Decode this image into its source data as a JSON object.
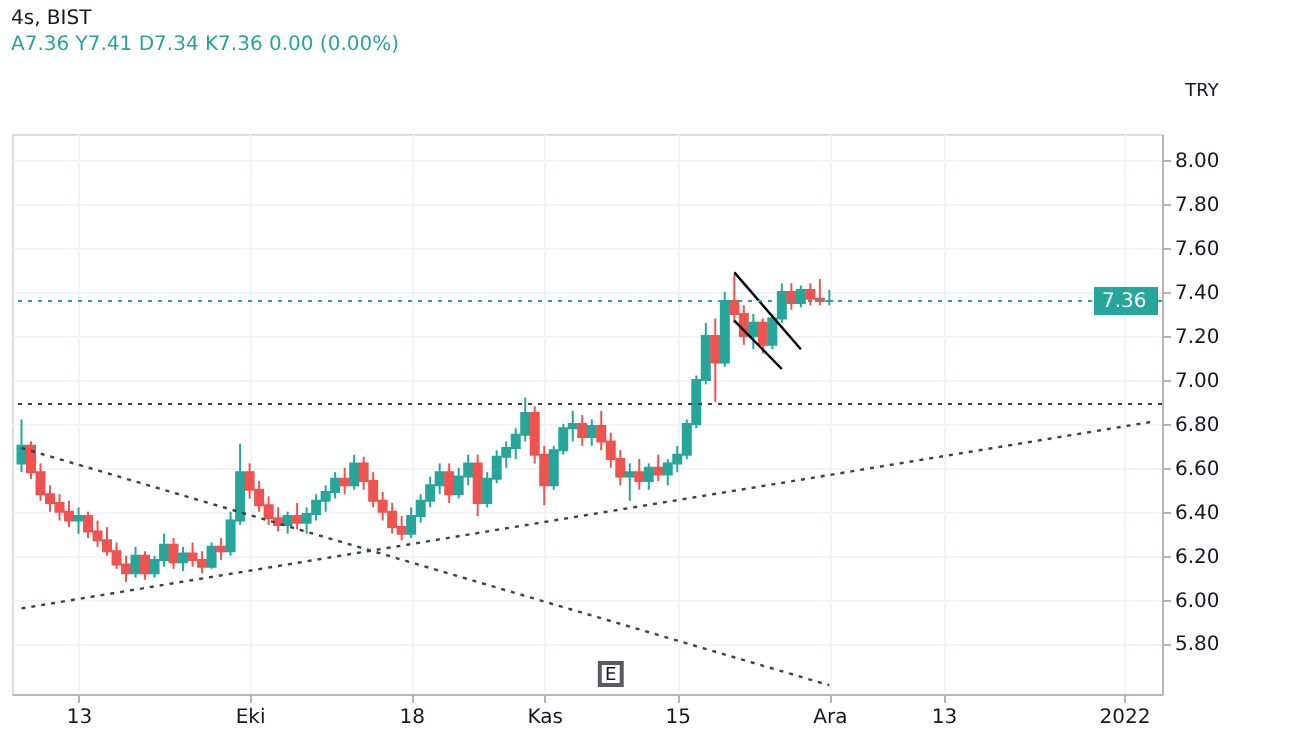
{
  "chart_data": {
    "type": "candlestick",
    "title": "4s, BIST",
    "subtitle": "A7.36  Y7.41  D7.34  K7.36  0.00 (0.00%)",
    "x": [
      "2021-09-07",
      "2021-09-08",
      "2021-09-09",
      "2021-09-10",
      "2021-09-11",
      "2021-09-12",
      "2021-09-13",
      "2021-09-14",
      "2021-09-15",
      "2021-09-16",
      "2021-09-17",
      "2021-09-18",
      "2021-09-19",
      "2021-09-20",
      "2021-09-21",
      "2021-09-22",
      "2021-09-23",
      "2021-09-24",
      "2021-09-25",
      "2021-09-26",
      "2021-09-27",
      "2021-09-28",
      "2021-09-29",
      "2021-09-30",
      "2021-10-01",
      "2021-10-02",
      "2021-10-03",
      "2021-10-04",
      "2021-10-05",
      "2021-10-06",
      "2021-10-07",
      "2021-10-08",
      "2021-10-09",
      "2021-10-10",
      "2021-10-11",
      "2021-10-12",
      "2021-10-13",
      "2021-10-14",
      "2021-10-15",
      "2021-10-16",
      "2021-10-17",
      "2021-10-18",
      "2021-10-19",
      "2021-10-20",
      "2021-10-21",
      "2021-10-22",
      "2021-10-23",
      "2021-10-24",
      "2021-10-25",
      "2021-10-26",
      "2021-10-27",
      "2021-10-28",
      "2021-10-29",
      "2021-10-30",
      "2021-10-31",
      "2021-11-01",
      "2021-11-02",
      "2021-11-03",
      "2021-11-04",
      "2021-11-05",
      "2021-11-06",
      "2021-11-07",
      "2021-11-08",
      "2021-11-09",
      "2021-11-10",
      "2021-11-11",
      "2021-11-12",
      "2021-11-13",
      "2021-11-14",
      "2021-11-15",
      "2021-11-16",
      "2021-11-17",
      "2021-11-18",
      "2021-11-19",
      "2021-11-20",
      "2021-11-21",
      "2021-11-22",
      "2021-11-23",
      "2021-11-24",
      "2021-11-25",
      "2021-11-26",
      "2021-11-27",
      "2021-11-28",
      "2021-11-29",
      "2021-11-30",
      "2021-12-01"
    ],
    "ohlc": [
      [
        6.62,
        6.82,
        6.58,
        6.7
      ],
      [
        6.7,
        6.72,
        6.55,
        6.58
      ],
      [
        6.58,
        6.62,
        6.45,
        6.48
      ],
      [
        6.48,
        6.52,
        6.4,
        6.44
      ],
      [
        6.44,
        6.48,
        6.36,
        6.4
      ],
      [
        6.4,
        6.45,
        6.33,
        6.36
      ],
      [
        6.36,
        6.42,
        6.3,
        6.38
      ],
      [
        6.38,
        6.4,
        6.28,
        6.31
      ],
      [
        6.31,
        6.36,
        6.24,
        6.27
      ],
      [
        6.27,
        6.33,
        6.2,
        6.22
      ],
      [
        6.22,
        6.26,
        6.14,
        6.16
      ],
      [
        6.16,
        6.2,
        6.08,
        6.12
      ],
      [
        6.12,
        6.24,
        6.1,
        6.2
      ],
      [
        6.2,
        6.22,
        6.09,
        6.12
      ],
      [
        6.12,
        6.2,
        6.1,
        6.18
      ],
      [
        6.18,
        6.3,
        6.15,
        6.25
      ],
      [
        6.25,
        6.28,
        6.14,
        6.17
      ],
      [
        6.17,
        6.24,
        6.13,
        6.21
      ],
      [
        6.21,
        6.26,
        6.15,
        6.18
      ],
      [
        6.18,
        6.22,
        6.12,
        6.15
      ],
      [
        6.15,
        6.26,
        6.14,
        6.24
      ],
      [
        6.24,
        6.28,
        6.18,
        6.22
      ],
      [
        6.22,
        6.4,
        6.2,
        6.36
      ],
      [
        6.36,
        6.71,
        6.34,
        6.58
      ],
      [
        6.58,
        6.62,
        6.46,
        6.5
      ],
      [
        6.5,
        6.54,
        6.4,
        6.43
      ],
      [
        6.43,
        6.47,
        6.34,
        6.37
      ],
      [
        6.37,
        6.42,
        6.31,
        6.34
      ],
      [
        6.34,
        6.4,
        6.3,
        6.38
      ],
      [
        6.38,
        6.44,
        6.32,
        6.35
      ],
      [
        6.35,
        6.42,
        6.3,
        6.39
      ],
      [
        6.39,
        6.48,
        6.36,
        6.45
      ],
      [
        6.45,
        6.52,
        6.4,
        6.49
      ],
      [
        6.49,
        6.58,
        6.46,
        6.55
      ],
      [
        6.55,
        6.6,
        6.48,
        6.52
      ],
      [
        6.52,
        6.66,
        6.5,
        6.62
      ],
      [
        6.62,
        6.65,
        6.5,
        6.54
      ],
      [
        6.54,
        6.58,
        6.42,
        6.45
      ],
      [
        6.45,
        6.49,
        6.36,
        6.4
      ],
      [
        6.4,
        6.44,
        6.3,
        6.33
      ],
      [
        6.33,
        6.38,
        6.27,
        6.3
      ],
      [
        6.3,
        6.42,
        6.28,
        6.38
      ],
      [
        6.38,
        6.48,
        6.35,
        6.45
      ],
      [
        6.45,
        6.56,
        6.42,
        6.52
      ],
      [
        6.52,
        6.62,
        6.48,
        6.58
      ],
      [
        6.58,
        6.62,
        6.44,
        6.48
      ],
      [
        6.48,
        6.6,
        6.46,
        6.56
      ],
      [
        6.56,
        6.66,
        6.52,
        6.62
      ],
      [
        6.62,
        6.66,
        6.38,
        6.44
      ],
      [
        6.44,
        6.58,
        6.42,
        6.55
      ],
      [
        6.55,
        6.68,
        6.53,
        6.65
      ],
      [
        6.65,
        6.72,
        6.6,
        6.69
      ],
      [
        6.69,
        6.78,
        6.64,
        6.75
      ],
      [
        6.75,
        6.92,
        6.72,
        6.85
      ],
      [
        6.85,
        6.88,
        6.62,
        6.66
      ],
      [
        6.66,
        6.7,
        6.43,
        6.52
      ],
      [
        6.52,
        6.7,
        6.5,
        6.68
      ],
      [
        6.68,
        6.8,
        6.66,
        6.78
      ],
      [
        6.78,
        6.86,
        6.72,
        6.8
      ],
      [
        6.8,
        6.84,
        6.7,
        6.74
      ],
      [
        6.74,
        6.82,
        6.7,
        6.79
      ],
      [
        6.79,
        6.86,
        6.68,
        6.72
      ],
      [
        6.72,
        6.76,
        6.6,
        6.64
      ],
      [
        6.64,
        6.68,
        6.52,
        6.56
      ],
      [
        6.56,
        6.62,
        6.45,
        6.58
      ],
      [
        6.58,
        6.64,
        6.5,
        6.54
      ],
      [
        6.54,
        6.62,
        6.5,
        6.6
      ],
      [
        6.6,
        6.66,
        6.54,
        6.57
      ],
      [
        6.57,
        6.64,
        6.52,
        6.62
      ],
      [
        6.62,
        6.7,
        6.58,
        6.66
      ],
      [
        6.66,
        6.82,
        6.64,
        6.8
      ],
      [
        6.8,
        7.02,
        6.78,
        7.0
      ],
      [
        7.0,
        7.26,
        6.98,
        7.2
      ],
      [
        7.2,
        7.28,
        6.9,
        7.08
      ],
      [
        7.08,
        7.4,
        7.06,
        7.36
      ],
      [
        7.36,
        7.48,
        7.26,
        7.3
      ],
      [
        7.3,
        7.34,
        7.16,
        7.2
      ],
      [
        7.2,
        7.3,
        7.14,
        7.26
      ],
      [
        7.26,
        7.28,
        7.12,
        7.16
      ],
      [
        7.16,
        7.3,
        7.14,
        7.28
      ],
      [
        7.28,
        7.44,
        7.26,
        7.4
      ],
      [
        7.4,
        7.44,
        7.32,
        7.35
      ],
      [
        7.35,
        7.43,
        7.33,
        7.41
      ],
      [
        7.41,
        7.44,
        7.34,
        7.37
      ],
      [
        7.37,
        7.46,
        7.34,
        7.36
      ],
      [
        7.36,
        7.41,
        7.34,
        7.36
      ]
    ],
    "colors": [
      "#26a69a",
      "#ef5350",
      "#ef5350",
      "#ef5350",
      "#ef5350",
      "#ef5350",
      "#26a69a",
      "#ef5350",
      "#ef5350",
      "#ef5350",
      "#ef5350",
      "#ef5350",
      "#26a69a",
      "#ef5350",
      "#26a69a",
      "#26a69a",
      "#ef5350",
      "#26a69a",
      "#ef5350",
      "#ef5350",
      "#26a69a",
      "#ef5350",
      "#26a69a",
      "#26a69a",
      "#ef5350",
      "#ef5350",
      "#ef5350",
      "#ef5350",
      "#26a69a",
      "#ef5350",
      "#26a69a",
      "#26a69a",
      "#26a69a",
      "#26a69a",
      "#ef5350",
      "#26a69a",
      "#ef5350",
      "#ef5350",
      "#ef5350",
      "#ef5350",
      "#ef5350",
      "#26a69a",
      "#26a69a",
      "#26a69a",
      "#26a69a",
      "#ef5350",
      "#26a69a",
      "#26a69a",
      "#ef5350",
      "#26a69a",
      "#26a69a",
      "#26a69a",
      "#26a69a",
      "#26a69a",
      "#ef5350",
      "#ef5350",
      "#26a69a",
      "#26a69a",
      "#26a69a",
      "#ef5350",
      "#26a69a",
      "#ef5350",
      "#ef5350",
      "#ef5350",
      "#26a69a",
      "#ef5350",
      "#26a69a",
      "#ef5350",
      "#26a69a",
      "#26a69a",
      "#26a69a",
      "#26a69a",
      "#26a69a",
      "#ef5350",
      "#26a69a",
      "#ef5350",
      "#ef5350",
      "#26a69a",
      "#ef5350",
      "#26a69a",
      "#26a69a",
      "#ef5350",
      "#26a69a",
      "#ef5350",
      "#ef5350",
      "#26a69a"
    ],
    "series": [
      {
        "type": "line",
        "x": [
          "2021-09-07",
          "2022-01-04"
        ],
        "values": [
          5.96,
          6.81
        ],
        "color": "#3d3f4a",
        "line_style": "dotted"
      },
      {
        "type": "line",
        "x": [
          "2021-09-07",
          "2021-12-01"
        ],
        "values": [
          6.69,
          5.61
        ],
        "color": "#3d3f4a",
        "line_style": "dotted"
      },
      {
        "type": "line",
        "x": [
          "2021-11-21",
          "2021-11-28"
        ],
        "values": [
          7.49,
          7.14
        ],
        "color": "#000000",
        "line_style": "solid"
      },
      {
        "type": "line",
        "x": [
          "2021-11-21",
          "2021-11-26"
        ],
        "values": [
          7.27,
          7.05
        ],
        "color": "#000000",
        "line_style": "solid"
      }
    ],
    "ref_lines": [
      {
        "axis": "y",
        "value": 6.89,
        "color": "#3d3f4a",
        "line_style": "dotted"
      },
      {
        "axis": "y",
        "value": 7.36,
        "label": "7.36",
        "color": "#26a69a",
        "line_style": "dotted"
      }
    ],
    "xlim": [
      "2021-09-06",
      "2022-01-05"
    ],
    "xticks": [
      {
        "value": "2021-09-13",
        "label": "13"
      },
      {
        "value": "2021-10-01",
        "label": "Eki"
      },
      {
        "value": "2021-10-18",
        "label": "18"
      },
      {
        "value": "2021-11-01",
        "label": "Kas"
      },
      {
        "value": "2021-11-15",
        "label": "15"
      },
      {
        "value": "2021-12-01",
        "label": "Ara"
      },
      {
        "value": "2021-12-13",
        "label": "13"
      },
      {
        "value": "2022-01-01",
        "label": "2022"
      }
    ],
    "ylim": [
      5.57,
      8.12
    ],
    "yticks": [
      {
        "value": 5.8,
        "label": "5.80"
      },
      {
        "value": 6.0,
        "label": "6.00"
      },
      {
        "value": 6.2,
        "label": "6.20"
      },
      {
        "value": 6.4,
        "label": "6.40"
      },
      {
        "value": 6.6,
        "label": "6.60"
      },
      {
        "value": 6.8,
        "label": "6.80"
      },
      {
        "value": 7.0,
        "label": "7.00"
      },
      {
        "value": 7.2,
        "label": "7.20"
      },
      {
        "value": 7.4,
        "label": "7.40"
      },
      {
        "value": 7.6,
        "label": "7.60"
      },
      {
        "value": 7.8,
        "label": "7.80"
      },
      {
        "value": 8.0,
        "label": "8.00"
      }
    ],
    "grid": true,
    "annotations": [
      {
        "text": "E",
        "x": "2021-11-08"
      },
      "TRY"
    ]
  }
}
